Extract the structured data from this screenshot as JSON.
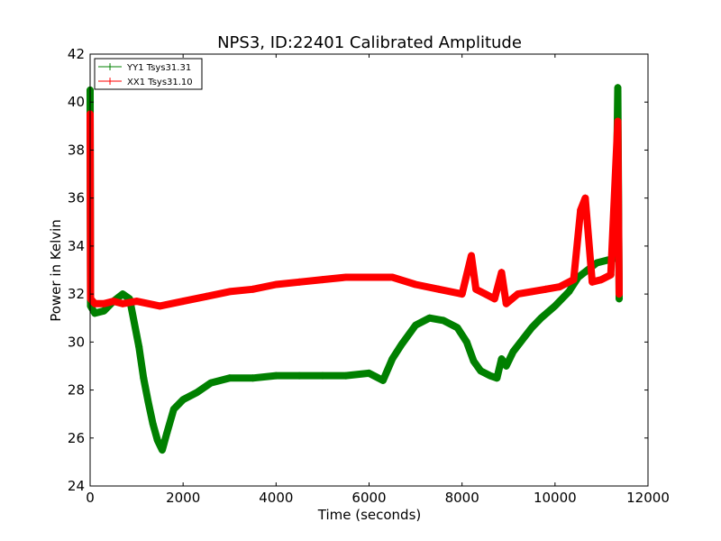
{
  "chart_data": {
    "type": "line",
    "title": "NPS3, ID:22401 Calibrated Amplitude",
    "xlabel": "Time (seconds)",
    "ylabel": "Power in Kelvin",
    "xlim": [
      0,
      12000
    ],
    "ylim": [
      24,
      42
    ],
    "xticks": [
      0,
      2000,
      4000,
      6000,
      8000,
      10000,
      12000
    ],
    "yticks": [
      24,
      26,
      28,
      30,
      32,
      34,
      36,
      38,
      40,
      42
    ],
    "grid": false,
    "legend_position": "top-left",
    "series": [
      {
        "name": "YY1 Tsys31.31",
        "color": "#008000",
        "marker": "+",
        "points": [
          [
            0,
            40.5
          ],
          [
            10,
            31.5
          ],
          [
            100,
            31.2
          ],
          [
            300,
            31.3
          ],
          [
            500,
            31.7
          ],
          [
            700,
            32.0
          ],
          [
            850,
            31.8
          ],
          [
            950,
            30.8
          ],
          [
            1050,
            29.8
          ],
          [
            1150,
            28.5
          ],
          [
            1250,
            27.5
          ],
          [
            1350,
            26.6
          ],
          [
            1450,
            25.9
          ],
          [
            1550,
            25.5
          ],
          [
            1650,
            26.2
          ],
          [
            1800,
            27.2
          ],
          [
            2000,
            27.6
          ],
          [
            2300,
            27.9
          ],
          [
            2600,
            28.3
          ],
          [
            3000,
            28.5
          ],
          [
            3500,
            28.5
          ],
          [
            4000,
            28.6
          ],
          [
            4500,
            28.6
          ],
          [
            5000,
            28.6
          ],
          [
            5500,
            28.6
          ],
          [
            6000,
            28.7
          ],
          [
            6300,
            28.4
          ],
          [
            6500,
            29.3
          ],
          [
            6700,
            29.9
          ],
          [
            7000,
            30.7
          ],
          [
            7300,
            31.0
          ],
          [
            7600,
            30.9
          ],
          [
            7900,
            30.6
          ],
          [
            8100,
            30.0
          ],
          [
            8250,
            29.2
          ],
          [
            8400,
            28.8
          ],
          [
            8600,
            28.6
          ],
          [
            8750,
            28.5
          ],
          [
            8850,
            29.3
          ],
          [
            8950,
            29.0
          ],
          [
            9100,
            29.6
          ],
          [
            9300,
            30.1
          ],
          [
            9500,
            30.6
          ],
          [
            9700,
            31.0
          ],
          [
            10000,
            31.5
          ],
          [
            10300,
            32.1
          ],
          [
            10500,
            32.7
          ],
          [
            10700,
            33.0
          ],
          [
            10900,
            33.3
          ],
          [
            11100,
            33.4
          ],
          [
            11300,
            33.5
          ],
          [
            11350,
            40.6
          ],
          [
            11380,
            31.8
          ]
        ]
      },
      {
        "name": "XX1 Tsys31.10",
        "color": "#ff0000",
        "marker": "+",
        "points": [
          [
            0,
            39.5
          ],
          [
            10,
            31.8
          ],
          [
            100,
            31.6
          ],
          [
            300,
            31.6
          ],
          [
            500,
            31.7
          ],
          [
            700,
            31.6
          ],
          [
            1000,
            31.7
          ],
          [
            1500,
            31.5
          ],
          [
            2000,
            31.7
          ],
          [
            2500,
            31.9
          ],
          [
            3000,
            32.1
          ],
          [
            3500,
            32.2
          ],
          [
            4000,
            32.4
          ],
          [
            4500,
            32.5
          ],
          [
            5000,
            32.6
          ],
          [
            5500,
            32.7
          ],
          [
            6000,
            32.7
          ],
          [
            6500,
            32.7
          ],
          [
            7000,
            32.4
          ],
          [
            7500,
            32.2
          ],
          [
            8000,
            32.0
          ],
          [
            8200,
            33.6
          ],
          [
            8300,
            32.2
          ],
          [
            8500,
            32.0
          ],
          [
            8700,
            31.8
          ],
          [
            8850,
            32.9
          ],
          [
            8950,
            31.6
          ],
          [
            9200,
            32.0
          ],
          [
            9500,
            32.1
          ],
          [
            9800,
            32.2
          ],
          [
            10100,
            32.3
          ],
          [
            10400,
            32.6
          ],
          [
            10550,
            35.5
          ],
          [
            10650,
            36.0
          ],
          [
            10800,
            32.5
          ],
          [
            11000,
            32.6
          ],
          [
            11200,
            32.8
          ],
          [
            11350,
            39.2
          ],
          [
            11380,
            32.0
          ]
        ]
      }
    ]
  }
}
